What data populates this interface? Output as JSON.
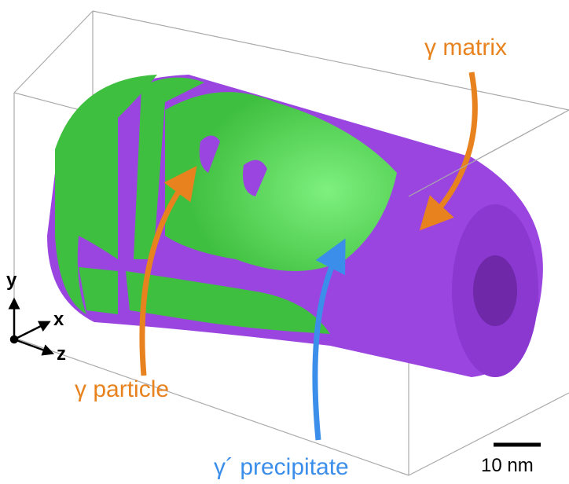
{
  "labels": {
    "matrix": "γ matrix",
    "particle": "γ particle",
    "precipitate": "γ´ precipitate"
  },
  "scale_bar": "10 nm",
  "axes": {
    "x": "x",
    "y": "y",
    "z": "z"
  }
}
